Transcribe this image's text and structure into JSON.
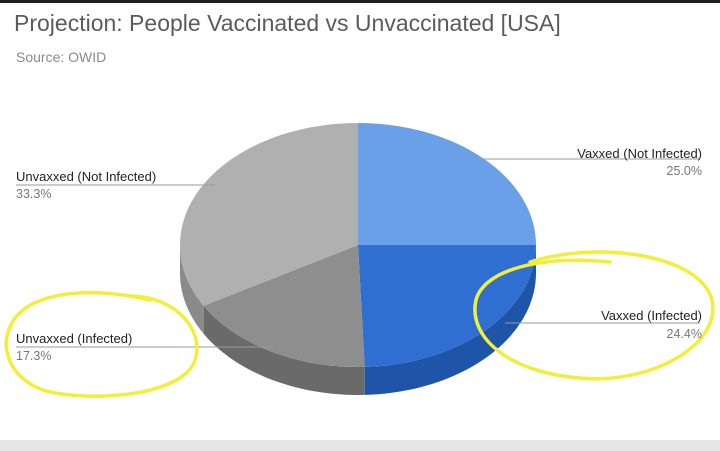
{
  "header": {
    "title": "Projection: People Vaccinated vs Unvaccinated [USA]",
    "source": "Source: OWID"
  },
  "chart_data": {
    "type": "pie",
    "style": "3d",
    "legend": "callout labels",
    "slices": [
      {
        "label": "Vaxxed (Not Infected)",
        "value": 25.0,
        "display": "25.0%",
        "color": "#6aa0e8",
        "side_color": "#4d82cc"
      },
      {
        "label": "Vaxxed (Infected)",
        "value": 24.4,
        "display": "24.4%",
        "color": "#2f6fd1",
        "side_color": "#1f55a8"
      },
      {
        "label": "Unvaxxed (Infected)",
        "value": 17.3,
        "display": "17.3%",
        "color": "#8e8e8e",
        "side_color": "#6a6a6a"
      },
      {
        "label": "Unvaxxed (Not Infected)",
        "value": 33.3,
        "display": "33.3%",
        "color": "#b0b0b0",
        "side_color": "#8a8a8a"
      }
    ],
    "annotations": [
      {
        "type": "hand-drawn circle",
        "target": "Vaxxed (Infected)",
        "color": "#f2ee3a"
      },
      {
        "type": "hand-drawn circle",
        "target": "Unvaxxed (Infected)",
        "color": "#f2ee3a"
      }
    ]
  }
}
